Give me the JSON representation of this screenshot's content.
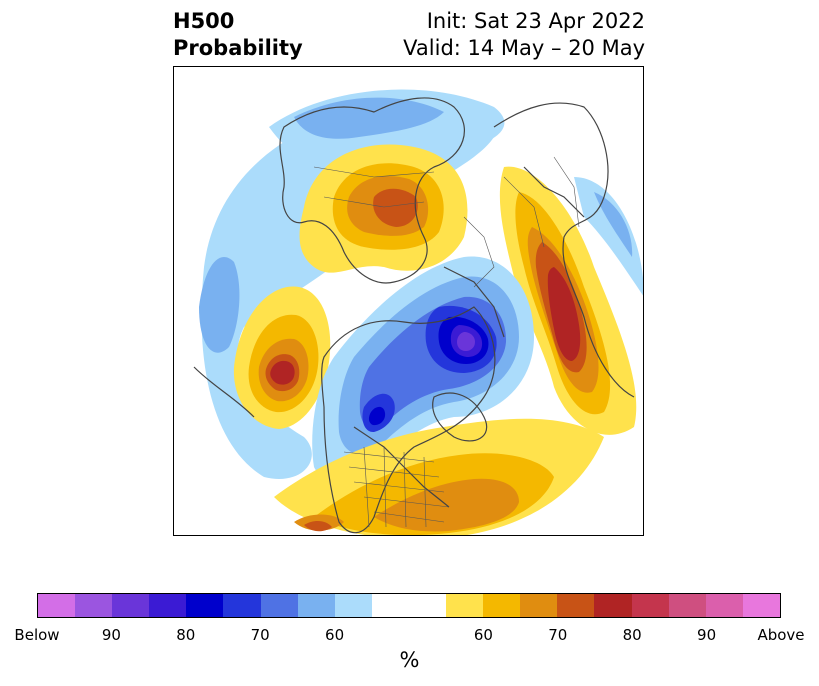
{
  "title": {
    "left_line1": "H500",
    "left_line2": "Probability",
    "right_line1": "Init: Sat 23 Apr 2022",
    "right_line2": "Valid: 14 May – 20 May"
  },
  "colorbar": {
    "unit": "%",
    "colors": [
      "#d36ee7",
      "#9b55e0",
      "#6a35d9",
      "#3b1bd4",
      "#0000cc",
      "#2436db",
      "#4f72e4",
      "#79b1f0",
      "#abdcfb",
      "#ffffff",
      "#ffffff",
      "#ffe24c",
      "#f4b800",
      "#e08d10",
      "#c85316",
      "#b02424",
      "#c4354d",
      "#cf4f80",
      "#db5fac",
      "#e877dd"
    ],
    "tick_labels": [
      "Below",
      "90",
      "80",
      "70",
      "60",
      "60",
      "70",
      "80",
      "90",
      "Above"
    ]
  }
}
